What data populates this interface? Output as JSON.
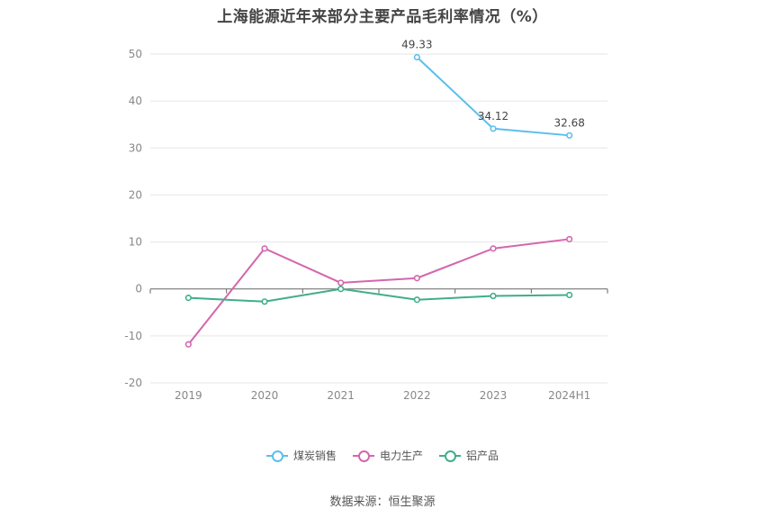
{
  "title": "上海能源近年来部分主要产品毛利率情况（%）",
  "source": "数据来源：恒生聚源",
  "chart_data": {
    "type": "line",
    "categories": [
      "2019",
      "2020",
      "2021",
      "2022",
      "2023",
      "2024H1"
    ],
    "ylim": [
      -20,
      50
    ],
    "yticks": [
      -20,
      -10,
      0,
      10,
      20,
      30,
      40,
      50
    ],
    "grid": true,
    "legend_position": "bottom",
    "series": [
      {
        "name": "煤炭销售",
        "color": "#5bbfec",
        "values": [
          null,
          null,
          null,
          49.33,
          34.12,
          32.68
        ],
        "labels": [
          "",
          "",
          "",
          "49.33",
          "34.12",
          "32.68"
        ]
      },
      {
        "name": "电力生产",
        "color": "#d466ad",
        "values": [
          -11.8,
          8.6,
          1.3,
          2.3,
          8.6,
          10.6
        ],
        "labels": [
          "",
          "",
          "",
          "",
          "",
          ""
        ]
      },
      {
        "name": "铝产品",
        "color": "#3fae8a",
        "values": [
          -1.9,
          -2.7,
          0.0,
          -2.3,
          -1.5,
          -1.3
        ],
        "labels": [
          "",
          "",
          "",
          "",
          "",
          ""
        ]
      }
    ]
  }
}
